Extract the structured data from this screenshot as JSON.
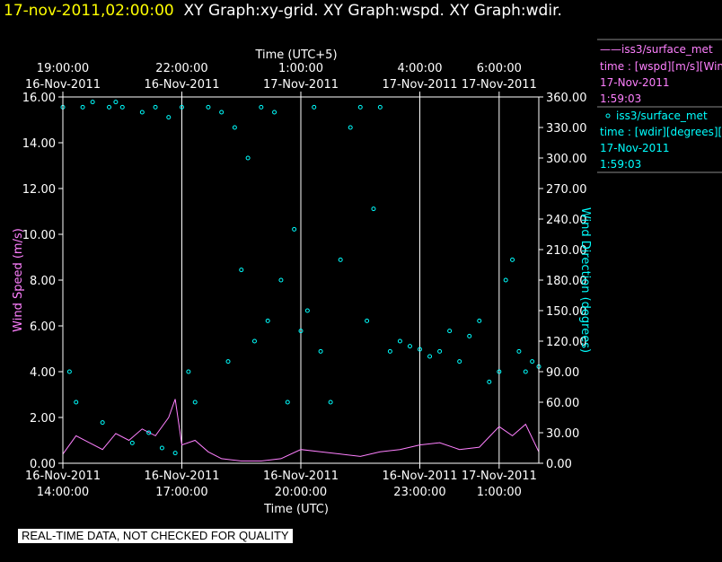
{
  "header": {
    "timestamp": "17-nov-2011,02:00:00",
    "graph_titles": "XY Graph:xy-grid.  XY Graph:wspd.  XY Graph:wdir."
  },
  "footer": {
    "note": "REAL-TIME DATA, NOT CHECKED FOR QUALITY"
  },
  "legend": {
    "wspd": {
      "name": "iss3/surface_met",
      "line1": "time : [wspd][m/s][Wind",
      "line2": "17-Nov-2011",
      "line3": "1:59:03"
    },
    "wdir": {
      "name": "iss3/surface_met",
      "line1": "time : [wdir][degrees][V",
      "line2": "17-Nov-2011",
      "line3": "1:59:03"
    }
  },
  "colors": {
    "wspd": "#ff80ff",
    "wdir": "#00ffff",
    "timestamp": "#ffff00",
    "axes": "#ffffff"
  },
  "chart_data": {
    "type": "line",
    "grid": "vertical lines at top-axis ticks",
    "x_bottom": {
      "label": "Time (UTC)",
      "ticks": [
        {
          "line1": "16-Nov-2011",
          "line2": "14:00:00"
        },
        {
          "line1": "16-Nov-2011",
          "line2": "17:00:00"
        },
        {
          "line1": "16-Nov-2011",
          "line2": "20:00:00"
        },
        {
          "line1": "16-Nov-2011",
          "line2": "23:00:00"
        },
        {
          "line1": "17-Nov-2011",
          "line2": "1:00:00"
        }
      ],
      "range_utc": [
        "2011-11-16 14:00",
        "2011-11-17 02:00"
      ]
    },
    "x_top": {
      "label": "Time (UTC+5)",
      "ticks": [
        {
          "line1": "19:00:00",
          "line2": "16-Nov-2011"
        },
        {
          "line1": "22:00:00",
          "line2": "16-Nov-2011"
        },
        {
          "line1": "1:00:00",
          "line2": "17-Nov-2011"
        },
        {
          "line1": "4:00:00",
          "line2": "17-Nov-2011"
        },
        {
          "line1": "6:00:00",
          "line2": "17-Nov-2011"
        }
      ]
    },
    "y_left": {
      "label": "Wind Speed (m/s)",
      "range": [
        0,
        16
      ],
      "ticks": [
        "0.00",
        "2.00",
        "4.00",
        "6.00",
        "8.00",
        "10.00",
        "12.00",
        "14.00",
        "16.00"
      ]
    },
    "y_right": {
      "label": "Wind Direction (degrees)",
      "range": [
        0,
        360
      ],
      "ticks": [
        "0.00",
        "30.00",
        "60.00",
        "90.00",
        "120.00",
        "150.00",
        "180.00",
        "210.00",
        "240.00",
        "270.00",
        "300.00",
        "330.00",
        "360.00"
      ]
    },
    "series": [
      {
        "id": "wspd",
        "type": "line",
        "axis": "left",
        "x": [
          "2011-11-16 14:00",
          "2011-11-16 14:20",
          "2011-11-16 14:40",
          "2011-11-16 15:00",
          "2011-11-16 15:20",
          "2011-11-16 15:40",
          "2011-11-16 16:00",
          "2011-11-16 16:20",
          "2011-11-16 16:40",
          "2011-11-16 16:50",
          "2011-11-16 17:00",
          "2011-11-16 17:20",
          "2011-11-16 17:40",
          "2011-11-16 18:00",
          "2011-11-16 18:30",
          "2011-11-16 19:00",
          "2011-11-16 19:30",
          "2011-11-16 20:00",
          "2011-11-16 20:30",
          "2011-11-16 21:00",
          "2011-11-16 21:30",
          "2011-11-16 22:00",
          "2011-11-16 22:30",
          "2011-11-16 23:00",
          "2011-11-16 23:30",
          "2011-11-17 00:00",
          "2011-11-17 00:30",
          "2011-11-17 01:00",
          "2011-11-17 01:20",
          "2011-11-17 01:40",
          "2011-11-17 02:00"
        ],
        "values": [
          0.4,
          1.2,
          0.9,
          0.6,
          1.3,
          1.0,
          1.5,
          1.2,
          2.0,
          2.8,
          0.8,
          1.0,
          0.5,
          0.2,
          0.1,
          0.1,
          0.2,
          0.6,
          0.5,
          0.4,
          0.3,
          0.5,
          0.6,
          0.8,
          0.9,
          0.6,
          0.7,
          1.6,
          1.2,
          1.7,
          0.5
        ]
      },
      {
        "id": "wdir",
        "type": "scatter",
        "axis": "right",
        "x": [
          "2011-11-16 14:00",
          "2011-11-16 14:10",
          "2011-11-16 14:20",
          "2011-11-16 14:30",
          "2011-11-16 14:45",
          "2011-11-16 15:00",
          "2011-11-16 15:10",
          "2011-11-16 15:20",
          "2011-11-16 15:30",
          "2011-11-16 15:45",
          "2011-11-16 16:00",
          "2011-11-16 16:10",
          "2011-11-16 16:20",
          "2011-11-16 16:30",
          "2011-11-16 16:40",
          "2011-11-16 16:50",
          "2011-11-16 17:00",
          "2011-11-16 17:10",
          "2011-11-16 17:20",
          "2011-11-16 17:40",
          "2011-11-16 18:00",
          "2011-11-16 18:10",
          "2011-11-16 18:20",
          "2011-11-16 18:30",
          "2011-11-16 18:40",
          "2011-11-16 18:50",
          "2011-11-16 19:00",
          "2011-11-16 19:10",
          "2011-11-16 19:20",
          "2011-11-16 19:30",
          "2011-11-16 19:40",
          "2011-11-16 19:50",
          "2011-11-16 20:00",
          "2011-11-16 20:10",
          "2011-11-16 20:20",
          "2011-11-16 20:30",
          "2011-11-16 20:45",
          "2011-11-16 21:00",
          "2011-11-16 21:15",
          "2011-11-16 21:30",
          "2011-11-16 21:40",
          "2011-11-16 21:50",
          "2011-11-16 22:00",
          "2011-11-16 22:15",
          "2011-11-16 22:30",
          "2011-11-16 22:45",
          "2011-11-16 23:00",
          "2011-11-16 23:15",
          "2011-11-16 23:30",
          "2011-11-16 23:45",
          "2011-11-17 00:00",
          "2011-11-17 00:15",
          "2011-11-17 00:30",
          "2011-11-17 00:45",
          "2011-11-17 01:00",
          "2011-11-17 01:10",
          "2011-11-17 01:20",
          "2011-11-17 01:30",
          "2011-11-17 01:40",
          "2011-11-17 01:50",
          "2011-11-17 02:00"
        ],
        "values": [
          350,
          90,
          60,
          350,
          355,
          40,
          350,
          355,
          350,
          20,
          345,
          30,
          350,
          15,
          340,
          10,
          350,
          90,
          60,
          350,
          345,
          100,
          330,
          190,
          300,
          120,
          350,
          140,
          345,
          180,
          60,
          230,
          130,
          150,
          350,
          110,
          60,
          200,
          330,
          350,
          140,
          250,
          350,
          110,
          120,
          115,
          112,
          105,
          110,
          130,
          100,
          125,
          140,
          80,
          90,
          180,
          200,
          110,
          90,
          100,
          95
        ]
      }
    ]
  }
}
